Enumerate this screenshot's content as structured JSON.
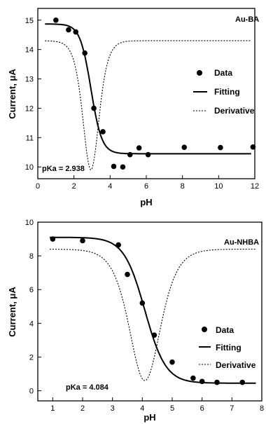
{
  "chart_data": [
    {
      "type": "scatter",
      "panel_label": "Au-BA",
      "xlabel": "pH",
      "ylabel": "Current, μA",
      "xlim": [
        0,
        12
      ],
      "ylim": [
        9.6,
        15.4
      ],
      "xticks": [
        0,
        2,
        4,
        6,
        8,
        10,
        12
      ],
      "yticks": [
        10,
        11,
        12,
        13,
        14,
        15
      ],
      "legend_placement": "right-middle",
      "legend": [
        "Data",
        "Fitting",
        "Derivative"
      ],
      "pka_label": "pKa = 2.938",
      "pka": 2.938,
      "fit_params": {
        "top": 14.87,
        "bottom": 10.45,
        "slope": 0.3
      },
      "derivative_baseline": 14.3,
      "derivative_min": 9.9,
      "series": [
        {
          "name": "Data",
          "x": [
            1.0,
            1.7,
            2.1,
            2.6,
            3.1,
            3.6,
            4.2,
            4.7,
            5.1,
            5.6,
            6.1,
            8.1,
            10.1,
            11.9
          ],
          "y": [
            15.0,
            14.67,
            14.6,
            13.88,
            12.0,
            11.2,
            10.02,
            10.0,
            10.42,
            10.65,
            10.42,
            10.67,
            10.66,
            10.68
          ]
        }
      ]
    },
    {
      "type": "scatter",
      "panel_label": "Au-NHBA",
      "xlabel": "pH",
      "ylabel": "Current, μA",
      "xlim": [
        0.5,
        8
      ],
      "ylim": [
        -0.6,
        10
      ],
      "xticks": [
        1,
        2,
        3,
        4,
        5,
        6,
        7,
        8
      ],
      "yticks": [
        0,
        2,
        4,
        6,
        8,
        10
      ],
      "legend_placement": "right-bottom",
      "legend": [
        "Data",
        "Fitting",
        "Derivative"
      ],
      "pka_label": "pKa = 4.084",
      "pka": 4.084,
      "fit_params": {
        "top": 9.1,
        "bottom": 0.45,
        "slope": 0.35
      },
      "derivative_baseline": 8.4,
      "derivative_min": 0.6,
      "series": [
        {
          "name": "Data",
          "x": [
            1.0,
            2.0,
            3.2,
            3.5,
            4.0,
            4.4,
            5.0,
            5.7,
            6.0,
            6.5,
            7.35
          ],
          "y": [
            9.0,
            8.9,
            8.65,
            6.9,
            5.2,
            3.3,
            1.7,
            0.75,
            0.55,
            0.5,
            0.5
          ]
        }
      ]
    }
  ]
}
